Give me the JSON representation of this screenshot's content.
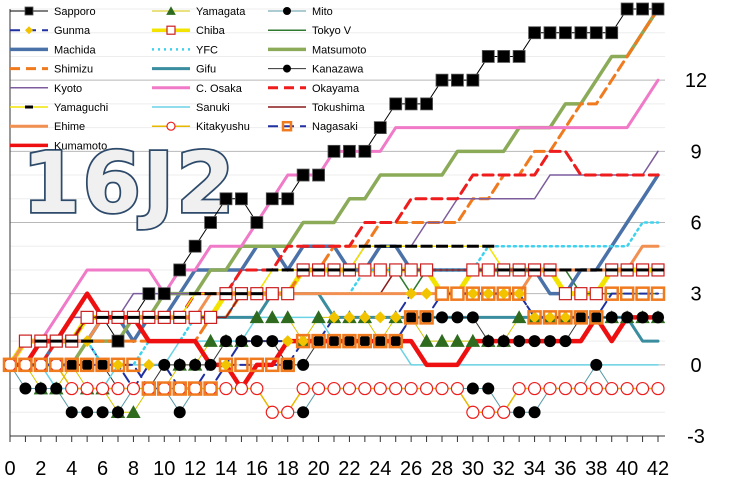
{
  "chart_data": {
    "type": "line",
    "title": "",
    "xlabel": "",
    "ylabel": "",
    "watermark": "16J2",
    "xlim": [
      0,
      42
    ],
    "ylim": [
      -3,
      15
    ],
    "x_ticks": [
      0,
      2,
      4,
      6,
      8,
      10,
      12,
      14,
      16,
      18,
      20,
      22,
      24,
      26,
      28,
      30,
      32,
      34,
      36,
      38,
      40,
      42
    ],
    "y_ticks": [
      -3,
      0,
      3,
      6,
      9,
      12
    ],
    "y_tick_side": "right",
    "grid": "horizontal",
    "legend_position": "top-left",
    "series": [
      {
        "name": "Sapporo",
        "color": "#000000",
        "marker": "square",
        "marker_fill": "#000000",
        "dash": "solid",
        "width": 1,
        "values": [
          0,
          0,
          0,
          1,
          1,
          2,
          2,
          1,
          2,
          3,
          3,
          4,
          5,
          6,
          7,
          7,
          6,
          7,
          7,
          8,
          8,
          9,
          9,
          9,
          10,
          11,
          11,
          11,
          12,
          12,
          12,
          13,
          13,
          13,
          14,
          14,
          14,
          14,
          14,
          14,
          15,
          15,
          15
        ]
      },
      {
        "name": "Yamagata",
        "color": "#d4c400",
        "marker": "triangle",
        "marker_fill": "#2e6b1e",
        "dash": "solid",
        "width": 1,
        "values": [
          0,
          0,
          -1,
          -1,
          0,
          -1,
          -1,
          -2,
          -2,
          -1,
          -1,
          0,
          0,
          1,
          1,
          1,
          2,
          2,
          2,
          1,
          2,
          2,
          2,
          2,
          1,
          2,
          2,
          1,
          1,
          1,
          1,
          1,
          1,
          2,
          2,
          2,
          2,
          2,
          2,
          2,
          2,
          2,
          2
        ]
      },
      {
        "name": "Mito",
        "color": "#5a9aa6",
        "marker": "circle",
        "marker_fill": "#000000",
        "dash": "solid",
        "width": 1,
        "values": [
          0,
          -1,
          -1,
          -1,
          -2,
          -2,
          -2,
          -2,
          -1,
          -1,
          -1,
          -2,
          -1,
          -1,
          -1,
          -1,
          -1,
          -2,
          -2,
          -2,
          -1,
          -1,
          -1,
          -1,
          -1,
          -1,
          -1,
          -1,
          -1,
          -1,
          -1,
          -1,
          -2,
          -2,
          -2,
          -1,
          -1,
          -1,
          0,
          -1,
          -1,
          -1,
          -1
        ]
      },
      {
        "name": "Gunma",
        "color": "#2030a0",
        "marker": "diamond",
        "marker_fill": "#f2c400",
        "dash": "dash",
        "width": 2,
        "values": [
          0,
          0,
          1,
          1,
          1,
          1,
          0,
          0,
          -1,
          0,
          0,
          -1,
          -1,
          0,
          0,
          1,
          1,
          1,
          1,
          1,
          1,
          2,
          2,
          2,
          2,
          2,
          3,
          3,
          3,
          3,
          3,
          3,
          3,
          3,
          2,
          2,
          2,
          2,
          2,
          2,
          2,
          2,
          2
        ]
      },
      {
        "name": "Chiba",
        "color": "#f2e400",
        "marker": "square-open",
        "marker_fill": "#ffffff",
        "marker_stroke": "#cc1f1f",
        "dash": "solid",
        "width": 5,
        "values": [
          0,
          1,
          1,
          1,
          1,
          2,
          2,
          2,
          2,
          2,
          2,
          2,
          2,
          2,
          3,
          3,
          3,
          3,
          3,
          4,
          4,
          4,
          4,
          4,
          4,
          4,
          4,
          4,
          3,
          3,
          4,
          4,
          4,
          4,
          4,
          4,
          3,
          3,
          3,
          4,
          4,
          4,
          4
        ]
      },
      {
        "name": "Tokyo V",
        "color": "#2f7a2f",
        "marker": "none",
        "dash": "solid",
        "width": 1.5,
        "values": [
          0,
          0,
          0,
          1,
          1,
          1,
          2,
          2,
          1,
          2,
          2,
          3,
          3,
          4,
          4,
          4,
          4,
          4,
          4,
          4,
          4,
          4,
          4,
          4,
          4,
          4,
          3,
          4,
          4,
          4,
          4,
          4,
          4,
          4,
          4,
          4,
          4,
          3,
          3,
          3,
          3,
          3,
          3
        ]
      },
      {
        "name": "Machida",
        "color": "#4a72a8",
        "marker": "none",
        "dash": "solid",
        "width": 3.5,
        "values": [
          0,
          0,
          0,
          1,
          1,
          1,
          2,
          2,
          1,
          2,
          2,
          3,
          4,
          4,
          4,
          4,
          5,
          5,
          4,
          5,
          5,
          5,
          4,
          4,
          5,
          5,
          4,
          4,
          4,
          4,
          4,
          4,
          4,
          4,
          4,
          3,
          3,
          4,
          4,
          5,
          6,
          7,
          8
        ]
      },
      {
        "name": "YFC",
        "color": "#3fd2ee",
        "marker": "none",
        "dash": "dot",
        "width": 2.5,
        "values": [
          0,
          0,
          1,
          1,
          1,
          1,
          0,
          0,
          0,
          1,
          1,
          1,
          2,
          2,
          2,
          3,
          3,
          3,
          3,
          3,
          3,
          3,
          3,
          4,
          4,
          4,
          4,
          4,
          4,
          4,
          4,
          5,
          5,
          5,
          5,
          5,
          5,
          5,
          5,
          5,
          5,
          6,
          6
        ]
      },
      {
        "name": "Matsumoto",
        "color": "#8bab58",
        "marker": "none",
        "dash": "solid",
        "width": 3.5,
        "values": [
          0,
          0,
          0,
          0,
          0,
          1,
          1,
          1,
          2,
          2,
          3,
          3,
          3,
          4,
          4,
          5,
          5,
          5,
          5,
          6,
          6,
          6,
          7,
          7,
          8,
          8,
          8,
          8,
          8,
          9,
          9,
          9,
          9,
          10,
          10,
          10,
          11,
          11,
          12,
          13,
          13,
          14,
          15
        ]
      },
      {
        "name": "Shimizu",
        "color": "#f07a1e",
        "marker": "none",
        "dash": "dash",
        "width": 3,
        "values": [
          0,
          0,
          0,
          1,
          1,
          1,
          1,
          1,
          1,
          1,
          1,
          1,
          1,
          2,
          2,
          3,
          3,
          3,
          3,
          4,
          4,
          5,
          5,
          5,
          6,
          6,
          6,
          6,
          6,
          6,
          7,
          7,
          8,
          8,
          9,
          9,
          10,
          11,
          11,
          12,
          13,
          14,
          15
        ]
      },
      {
        "name": "Gifu",
        "color": "#3a8d9e",
        "marker": "none",
        "dash": "solid",
        "width": 3,
        "values": [
          0,
          0,
          1,
          1,
          1,
          1,
          2,
          2,
          2,
          2,
          2,
          2,
          2,
          2,
          2,
          2,
          2,
          3,
          3,
          3,
          3,
          2,
          2,
          2,
          2,
          2,
          2,
          2,
          2,
          2,
          2,
          2,
          2,
          2,
          2,
          2,
          2,
          2,
          2,
          2,
          2,
          1,
          1
        ]
      },
      {
        "name": "Kanazawa",
        "color": "#333333",
        "marker": "circle",
        "marker_fill": "#000000",
        "dash": "solid",
        "width": 1,
        "values": [
          0,
          0,
          0,
          0,
          0,
          0,
          0,
          -1,
          -1,
          -1,
          0,
          0,
          0,
          0,
          1,
          1,
          1,
          1,
          0,
          0,
          1,
          1,
          1,
          1,
          1,
          1,
          2,
          2,
          2,
          2,
          2,
          1,
          1,
          1,
          1,
          1,
          1,
          2,
          2,
          2,
          2,
          2,
          2
        ]
      },
      {
        "name": "Kyoto",
        "color": "#7d5c9e",
        "marker": "none",
        "dash": "solid",
        "width": 1.5,
        "values": [
          0,
          0,
          1,
          1,
          2,
          2,
          2,
          2,
          3,
          3,
          3,
          3,
          3,
          3,
          3,
          4,
          4,
          4,
          4,
          4,
          4,
          4,
          4,
          5,
          5,
          5,
          5,
          6,
          6,
          7,
          7,
          7,
          7,
          7,
          7,
          8,
          8,
          8,
          8,
          8,
          8,
          8,
          9
        ]
      },
      {
        "name": "C. Osaka",
        "color": "#f07ac8",
        "marker": "none",
        "dash": "solid",
        "width": 3,
        "values": [
          0,
          1,
          1,
          2,
          3,
          4,
          4,
          4,
          4,
          4,
          3,
          4,
          4,
          5,
          5,
          5,
          6,
          7,
          8,
          8,
          8,
          9,
          9,
          9,
          9,
          10,
          10,
          10,
          10,
          10,
          10,
          10,
          10,
          10,
          10,
          10,
          10,
          10,
          10,
          10,
          10,
          11,
          12
        ]
      },
      {
        "name": "Okayama",
        "color": "#ee1c1c",
        "marker": "none",
        "dash": "dash",
        "width": 3,
        "values": [
          0,
          0,
          0,
          1,
          1,
          2,
          2,
          2,
          2,
          2,
          2,
          2,
          3,
          3,
          3,
          4,
          4,
          4,
          5,
          5,
          5,
          5,
          5,
          6,
          6,
          6,
          7,
          7,
          7,
          7,
          8,
          8,
          8,
          8,
          8,
          9,
          9,
          8,
          8,
          8,
          8,
          8,
          8
        ]
      },
      {
        "name": "Yamaguchi",
        "color": "#f2e400",
        "marker": "dash",
        "marker_fill": "#000000",
        "dash": "solid",
        "width": 1.5,
        "values": [
          0,
          0,
          1,
          1,
          1,
          1,
          2,
          2,
          2,
          2,
          2,
          2,
          3,
          3,
          3,
          3,
          3,
          4,
          4,
          4,
          4,
          4,
          4,
          5,
          5,
          5,
          5,
          5,
          5,
          5,
          5,
          5,
          4,
          4,
          4,
          4,
          4,
          4,
          4,
          4,
          4,
          4,
          4
        ]
      },
      {
        "name": "Sanuki",
        "color": "#6ad2e6",
        "marker": "none",
        "dash": "solid",
        "width": 1.5,
        "values": [
          0,
          0,
          0,
          -1,
          -1,
          -1,
          -1,
          0,
          0,
          0,
          0,
          1,
          1,
          1,
          1,
          1,
          2,
          2,
          2,
          2,
          2,
          1,
          1,
          1,
          1,
          1,
          0,
          0,
          0,
          0,
          0,
          0,
          0,
          0,
          0,
          0,
          0,
          0,
          0,
          0,
          0,
          0,
          0
        ]
      },
      {
        "name": "Tokushima",
        "color": "#8b1a1a",
        "marker": "none",
        "dash": "solid",
        "width": 1.5,
        "values": [
          0,
          0,
          1,
          1,
          1,
          2,
          2,
          2,
          2,
          2,
          2,
          2,
          2,
          2,
          2,
          3,
          3,
          3,
          3,
          3,
          3,
          3,
          3,
          3,
          3,
          4,
          4,
          4,
          4,
          4,
          4,
          4,
          4,
          4,
          4,
          4,
          4,
          4,
          4,
          4,
          4,
          5,
          5
        ]
      },
      {
        "name": "Ehime",
        "color": "#f29052",
        "marker": "none",
        "dash": "solid",
        "width": 3,
        "values": [
          0,
          1,
          1,
          1,
          1,
          1,
          2,
          2,
          2,
          2,
          2,
          2,
          2,
          3,
          3,
          3,
          3,
          3,
          3,
          3,
          3,
          3,
          3,
          3,
          3,
          3,
          3,
          3,
          3,
          3,
          3,
          3,
          3,
          3,
          4,
          4,
          4,
          4,
          4,
          4,
          4,
          5,
          5
        ]
      },
      {
        "name": "Kitakyushu",
        "color": "#e6b800",
        "marker": "circle-open",
        "marker_fill": "#ffffff",
        "marker_stroke": "#ee1c1c",
        "dash": "solid",
        "width": 1.5,
        "values": [
          0,
          0,
          0,
          0,
          -1,
          -1,
          -1,
          -1,
          -1,
          -1,
          -1,
          -1,
          -1,
          -1,
          -1,
          -1,
          -1,
          -2,
          -2,
          -1,
          -1,
          -1,
          -1,
          -1,
          -1,
          -1,
          -1,
          -1,
          -1,
          -1,
          -2,
          -2,
          -2,
          -1,
          -1,
          -1,
          -1,
          -1,
          -1,
          -1,
          -1,
          -1,
          -1
        ]
      },
      {
        "name": "Nagasaki",
        "color": "#2030a0",
        "marker": "square-framed",
        "marker_fill": "#f07a1e",
        "marker_stroke": "#f07a1e",
        "dash": "dash",
        "width": 2,
        "values": [
          0,
          0,
          0,
          0,
          0,
          0,
          0,
          0,
          0,
          -1,
          -1,
          -1,
          -1,
          -1,
          0,
          0,
          0,
          0,
          0,
          1,
          1,
          1,
          1,
          1,
          1,
          1,
          2,
          2,
          3,
          3,
          3,
          3,
          3,
          3,
          2,
          2,
          2,
          2,
          2,
          3,
          3,
          3,
          3
        ]
      },
      {
        "name": "Kumamoto",
        "color": "#ee1010",
        "marker": "none",
        "dash": "solid",
        "width": 4.5,
        "values": [
          0,
          0,
          1,
          1,
          2,
          3,
          2,
          2,
          2,
          1,
          1,
          1,
          1,
          0,
          0,
          -1,
          0,
          0,
          1,
          1,
          1,
          1,
          1,
          1,
          1,
          1,
          1,
          0,
          0,
          0,
          1,
          1,
          1,
          1,
          1,
          1,
          1,
          1,
          2,
          1,
          2,
          2,
          2
        ]
      }
    ]
  }
}
